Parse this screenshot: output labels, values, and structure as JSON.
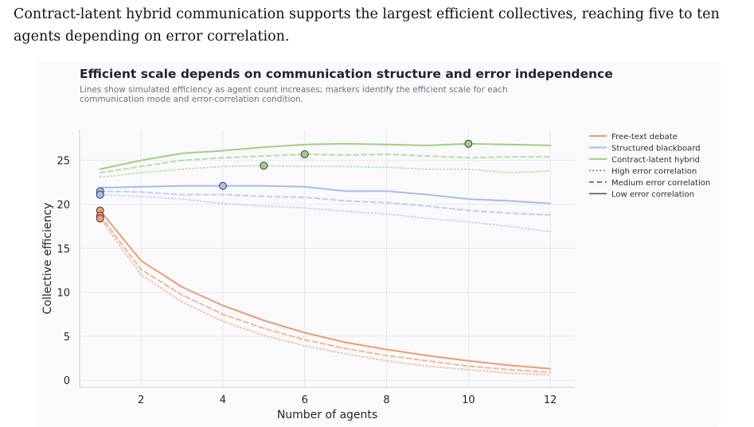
{
  "caption": "Contract-latent hybrid communication supports the largest efficient collectives, reaching five to ten agents depending on error correlation.",
  "chart_data": {
    "type": "line",
    "title": "Efficient scale depends on communication structure and error independence",
    "subtitle": "Lines show simulated efficiency as agent count increases; markers identify the efficient scale for each communication mode and error-correlation condition.",
    "xlabel": "Number of agents",
    "ylabel": "Collective efficiency",
    "xlim": [
      0.5,
      12.6
    ],
    "ylim": [
      -0.8,
      28.5
    ],
    "xticks": [
      2,
      4,
      6,
      8,
      10,
      12
    ],
    "yticks": [
      0,
      5,
      10,
      15,
      20,
      25
    ],
    "grid": true,
    "legend_position": "right",
    "x": [
      1,
      2,
      3,
      4,
      5,
      6,
      7,
      8,
      9,
      10,
      11,
      12
    ],
    "legend": [
      {
        "label": "Free-text debate",
        "kind": "color",
        "color": "#ee9b6f"
      },
      {
        "label": "Structured blackboard",
        "kind": "color",
        "color": "#a3bdf0"
      },
      {
        "label": "Contract-latent hybrid",
        "kind": "color",
        "color": "#9bd17f"
      },
      {
        "label": "High error correlation",
        "kind": "style",
        "dash": "1.5,3"
      },
      {
        "label": "Medium error correlation",
        "kind": "style",
        "dash": "6,4"
      },
      {
        "label": "Low error correlation",
        "kind": "style",
        "dash": ""
      }
    ],
    "series": [
      {
        "name": "Free-text debate",
        "correlation": "Low",
        "color": "#ee9b6f",
        "dash": "",
        "opacity": 1,
        "values": [
          19.3,
          13.6,
          10.6,
          8.5,
          6.8,
          5.4,
          4.3,
          3.5,
          2.8,
          2.2,
          1.7,
          1.3
        ],
        "marker": {
          "x": 1,
          "y": 19.3
        }
      },
      {
        "name": "Free-text debate",
        "correlation": "Medium",
        "color": "#ee9b6f",
        "dash": "6,4",
        "opacity": 0.7,
        "values": [
          18.7,
          12.6,
          9.7,
          7.5,
          5.9,
          4.6,
          3.6,
          2.8,
          2.2,
          1.6,
          1.2,
          0.9
        ],
        "marker": {
          "x": 1,
          "y": 18.7
        }
      },
      {
        "name": "Free-text debate",
        "correlation": "High",
        "color": "#ee9b6f",
        "dash": "1.5,3",
        "opacity": 0.55,
        "values": [
          18.4,
          12.0,
          8.9,
          6.7,
          5.1,
          3.9,
          3.0,
          2.2,
          1.6,
          1.2,
          0.8,
          0.6
        ],
        "marker": {
          "x": 1,
          "y": 18.4
        }
      },
      {
        "name": "Structured blackboard",
        "correlation": "Low",
        "color": "#a3bdf0",
        "dash": "",
        "opacity": 1,
        "values": [
          21.9,
          22.0,
          22.1,
          22.1,
          22.1,
          22.0,
          21.5,
          21.5,
          21.1,
          20.6,
          20.4,
          20.1
        ],
        "marker": {
          "x": 4,
          "y": 22.1
        }
      },
      {
        "name": "Structured blackboard",
        "correlation": "Medium",
        "color": "#a3bdf0",
        "dash": "6,4",
        "opacity": 0.7,
        "values": [
          21.5,
          21.4,
          21.1,
          21.1,
          20.9,
          20.8,
          20.4,
          20.2,
          19.8,
          19.3,
          19.0,
          18.8
        ],
        "marker": {
          "x": 1,
          "y": 21.5
        }
      },
      {
        "name": "Structured blackboard",
        "correlation": "High",
        "color": "#a3bdf0",
        "dash": "1.5,3",
        "opacity": 0.55,
        "values": [
          21.1,
          20.9,
          20.6,
          20.1,
          19.8,
          19.6,
          19.2,
          18.9,
          18.4,
          18.0,
          17.5,
          16.9
        ],
        "marker": {
          "x": 1,
          "y": 21.1
        }
      },
      {
        "name": "Contract-latent hybrid",
        "correlation": "Low",
        "color": "#9bd17f",
        "dash": "",
        "opacity": 1,
        "values": [
          24.0,
          25.0,
          25.8,
          26.1,
          26.5,
          26.8,
          26.9,
          26.8,
          26.7,
          26.9,
          26.8,
          26.7
        ],
        "marker": {
          "x": 10,
          "y": 26.9
        }
      },
      {
        "name": "Contract-latent hybrid",
        "correlation": "Medium",
        "color": "#9bd17f",
        "dash": "6,4",
        "opacity": 0.7,
        "values": [
          23.6,
          24.3,
          25.0,
          25.3,
          25.5,
          25.7,
          25.6,
          25.7,
          25.5,
          25.3,
          25.4,
          25.4
        ],
        "marker": {
          "x": 6,
          "y": 25.7
        }
      },
      {
        "name": "Contract-latent hybrid",
        "correlation": "High",
        "color": "#9bd17f",
        "dash": "1.5,3",
        "opacity": 0.55,
        "values": [
          23.1,
          23.6,
          24.0,
          24.3,
          24.4,
          24.3,
          24.3,
          24.2,
          24.0,
          24.0,
          23.6,
          23.8
        ],
        "marker": {
          "x": 5,
          "y": 24.4
        }
      }
    ]
  }
}
